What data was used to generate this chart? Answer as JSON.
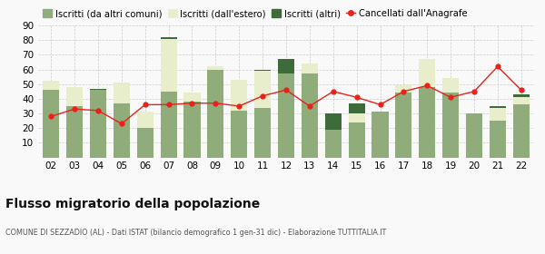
{
  "years": [
    "02",
    "03",
    "04",
    "05",
    "06",
    "07",
    "08",
    "09",
    "10",
    "11",
    "12",
    "13",
    "14",
    "15",
    "16",
    "17",
    "18",
    "19",
    "20",
    "21",
    "22"
  ],
  "iscritti_altri_comuni": [
    46,
    35,
    46,
    37,
    20,
    45,
    38,
    60,
    32,
    34,
    57,
    57,
    19,
    24,
    31,
    44,
    48,
    44,
    30,
    25,
    36
  ],
  "iscritti_estero": [
    6,
    13,
    0,
    14,
    11,
    36,
    6,
    2,
    21,
    25,
    0,
    7,
    0,
    6,
    0,
    5,
    19,
    10,
    0,
    9,
    5
  ],
  "iscritti_altri": [
    0,
    0,
    1,
    0,
    0,
    1,
    0,
    0,
    0,
    1,
    10,
    0,
    11,
    7,
    0,
    0,
    0,
    0,
    0,
    1,
    2
  ],
  "cancellati": [
    28,
    33,
    32,
    23,
    36,
    36,
    37,
    37,
    35,
    42,
    46,
    35,
    45,
    41,
    36,
    45,
    49,
    41,
    45,
    62,
    46
  ],
  "color_altri_comuni": "#8fac7a",
  "color_estero": "#e8eecc",
  "color_altri": "#3d6b3a",
  "color_cancellati": "#e8221a",
  "ylim": [
    0,
    90
  ],
  "yticks": [
    0,
    10,
    20,
    30,
    40,
    50,
    60,
    70,
    80,
    90
  ],
  "title": "Flusso migratorio della popolazione",
  "subtitle": "COMUNE DI SEZZADIO (AL) - Dati ISTAT (bilancio demografico 1 gen-31 dic) - Elaborazione TUTTITALIA.IT",
  "legend_labels": [
    "Iscritti (da altri comuni)",
    "Iscritti (dall'estero)",
    "Iscritti (altri)",
    "Cancellati dall'Anagrafe"
  ],
  "bg_color": "#f9f9f9",
  "grid_color": "#cccccc"
}
